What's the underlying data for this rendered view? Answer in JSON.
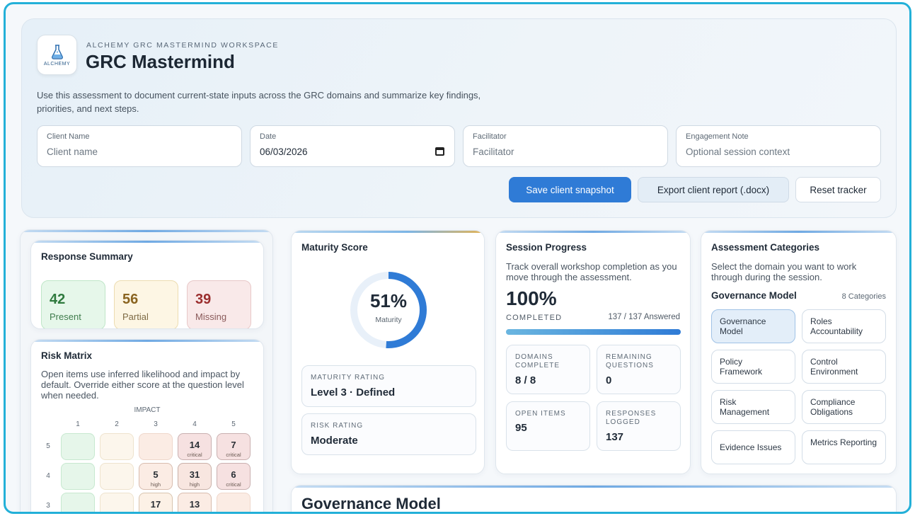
{
  "header": {
    "logo_text": "ALCHEMY",
    "eyebrow": "ALCHEMY GRC MASTERMIND WORKSPACE",
    "title": "GRC Mastermind",
    "intro": "Use this assessment to document current-state inputs across the GRC domains and summarize key findings, priorities, and next steps."
  },
  "fields": {
    "client_name": {
      "label": "Client Name",
      "placeholder": "Client name"
    },
    "date": {
      "label": "Date",
      "value": "06/03/2026"
    },
    "facilitator": {
      "label": "Facilitator",
      "placeholder": "Facilitator"
    },
    "engagement_note": {
      "label": "Engagement Note",
      "placeholder": "Optional session context"
    }
  },
  "actions": {
    "save": "Save client snapshot",
    "export": "Export client report (.docx)",
    "reset": "Reset tracker"
  },
  "response_summary": {
    "title": "Response Summary",
    "present": {
      "value": "42",
      "label": "Present"
    },
    "partial": {
      "value": "56",
      "label": "Partial"
    },
    "missing": {
      "value": "39",
      "label": "Missing"
    }
  },
  "risk_matrix": {
    "title": "Risk Matrix",
    "description": "Open items use inferred likelihood and impact by default. Override either score at the question level when needed.",
    "impact_label": "IMPACT",
    "impact_cols": [
      "1",
      "2",
      "3",
      "4",
      "5"
    ],
    "rows": [
      {
        "likelihood": "5",
        "cells": [
          {
            "n": "",
            "l": ""
          },
          {
            "n": "",
            "l": ""
          },
          {
            "n": "",
            "l": ""
          },
          {
            "n": "14",
            "l": "critical"
          },
          {
            "n": "7",
            "l": "critical"
          }
        ]
      },
      {
        "likelihood": "4",
        "cells": [
          {
            "n": "",
            "l": ""
          },
          {
            "n": "",
            "l": ""
          },
          {
            "n": "5",
            "l": "high"
          },
          {
            "n": "31",
            "l": "high"
          },
          {
            "n": "6",
            "l": "critical"
          }
        ]
      },
      {
        "likelihood": "3",
        "cells": [
          {
            "n": "",
            "l": ""
          },
          {
            "n": "",
            "l": ""
          },
          {
            "n": "17",
            "l": ""
          },
          {
            "n": "13",
            "l": ""
          },
          {
            "n": "",
            "l": ""
          }
        ]
      }
    ]
  },
  "maturity": {
    "title": "Maturity Score",
    "percent": "51%",
    "percent_value": 51,
    "caption": "Maturity",
    "rating_label": "MATURITY RATING",
    "rating_value": "Level 3 · Defined",
    "risk_label": "RISK RATING",
    "risk_value": "Moderate"
  },
  "session": {
    "title": "Session Progress",
    "description": "Track overall workshop completion as you move through the assessment.",
    "percent": "100%",
    "progress_value": 100,
    "completed_label": "COMPLETED",
    "answered": "137 / 137 Answered",
    "domains_label": "DOMAINS COMPLETE",
    "domains_value": "8 / 8",
    "remaining_label": "REMAINING QUESTIONS",
    "remaining_value": "0",
    "open_label": "OPEN ITEMS",
    "open_value": "95",
    "logged_label": "RESPONSES LOGGED",
    "logged_value": "137"
  },
  "categories": {
    "title": "Assessment Categories",
    "description": "Select the domain you want to work through during the session.",
    "current": "Governance Model",
    "count": "8 Categories",
    "items": [
      "Governance Model",
      "Roles Accountability",
      "Policy Framework",
      "Control Environment",
      "Risk Management",
      "Compliance Obligations",
      "Evidence Issues",
      "Metrics Reporting"
    ]
  },
  "section": {
    "title": "Governance Model"
  },
  "colors": {
    "accent": "#2f7bd6",
    "frame": "#23b0d8",
    "present": "#e4f6e8",
    "partial": "#fdf5e2",
    "missing": "#f9e6e6"
  }
}
